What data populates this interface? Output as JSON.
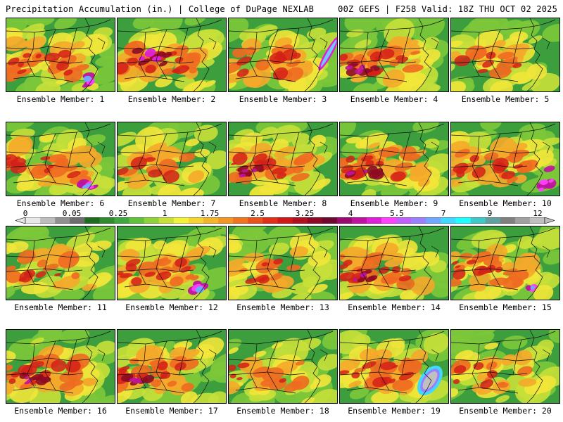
{
  "header": {
    "title": "Precipitation Accumulation (in.) | College of DuPage NEXLAB",
    "run_info": "00Z GEFS | F258 Valid: 18Z THU OCT 02 2025"
  },
  "colorbar": {
    "tick_labels": [
      "0",
      "0.05",
      "0.25",
      "1",
      "1.75",
      "2.5",
      "3.25",
      "4",
      "5.5",
      "7",
      "9",
      "12"
    ],
    "colors": [
      "#e8e8e8",
      "#bdbdbd",
      "#909090",
      "#6e6e6e",
      "#1f6b1f",
      "#2e8b2e",
      "#3fa83f",
      "#5fc23a",
      "#8fd13a",
      "#c8e03a",
      "#f2f23a",
      "#f5d330",
      "#f5b52a",
      "#f29524",
      "#ee7420",
      "#e8531c",
      "#e0301a",
      "#d01818",
      "#b01020",
      "#8e0a24",
      "#70082e",
      "#9a0a6e",
      "#c012a0",
      "#e020d8",
      "#ff40ff",
      "#c060ff",
      "#9a80ff",
      "#70a8ff",
      "#40d8ff",
      "#20ffff",
      "#40c8c8",
      "#60a0a0",
      "#808080",
      "#a0a0a0",
      "#c0c0c0"
    ]
  },
  "members": [
    {
      "label": "Ensemble Member: 1",
      "feature": "coastal-blob"
    },
    {
      "label": "Ensemble Member: 2",
      "feature": "inland-magenta"
    },
    {
      "label": "Ensemble Member: 3",
      "feature": "offshore-streak"
    },
    {
      "label": "Ensemble Member: 4",
      "feature": "west-band"
    },
    {
      "label": "Ensemble Member: 5",
      "feature": "dry"
    },
    {
      "label": "Ensemble Member: 6",
      "feature": "coastal-blob"
    },
    {
      "label": "Ensemble Member: 7",
      "feature": "dry"
    },
    {
      "label": "Ensemble Member: 8",
      "feature": "inland-band"
    },
    {
      "label": "Ensemble Member: 9",
      "feature": "west-band"
    },
    {
      "label": "Ensemble Member: 10",
      "feature": "southeast-wet"
    },
    {
      "label": "Ensemble Member: 11",
      "feature": "dry"
    },
    {
      "label": "Ensemble Member: 12",
      "feature": "coastal-blob"
    },
    {
      "label": "Ensemble Member: 13",
      "feature": "dry"
    },
    {
      "label": "Ensemble Member: 14",
      "feature": "west-band"
    },
    {
      "label": "Ensemble Member: 15",
      "feature": "coastal-small"
    },
    {
      "label": "Ensemble Member: 16",
      "feature": "west-band"
    },
    {
      "label": "Ensemble Member: 17",
      "feature": "inland-band"
    },
    {
      "label": "Ensemble Member: 18",
      "feature": "dry"
    },
    {
      "label": "Ensemble Member: 19",
      "feature": "offshore-gray"
    },
    {
      "label": "Ensemble Member: 20",
      "feature": "dry"
    }
  ]
}
